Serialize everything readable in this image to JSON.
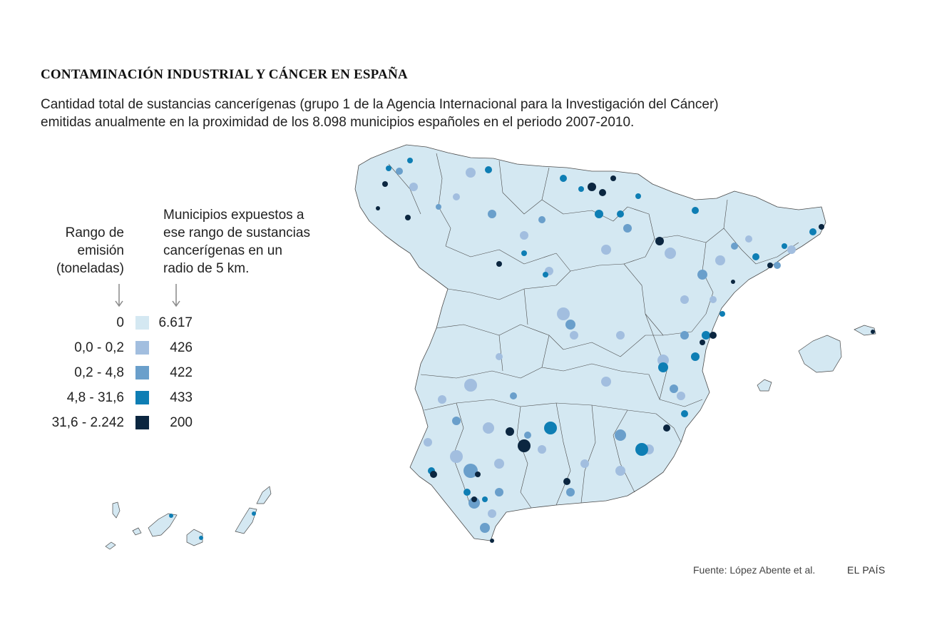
{
  "title": "CONTAMINACIÓN INDUSTRIAL Y CÁNCER EN ESPAÑA",
  "subtitle_line1": "Cantidad total de sustancias cancerígenas (grupo 1 de la Agencia Internacional para la Investigación del Cáncer)",
  "subtitle_line2": "emitidas anualmente en la proximidad de los 8.098 municipios españoles en el periodo 2007-2010.",
  "legend": {
    "range_header": [
      "Rango de",
      "emisión",
      "(toneladas)"
    ],
    "count_header": [
      "Municipios expuestos a",
      "ese rango de sustancias",
      "cancerígenas en un",
      "radio de 5 km."
    ],
    "rows": [
      {
        "range": "0",
        "count": "6.617",
        "color": "#d4e8f2"
      },
      {
        "range": "0,0 - 0,2",
        "count": "426",
        "color": "#a2bedf"
      },
      {
        "range": "0,2 - 4,8",
        "count": "422",
        "color": "#6a9fcb"
      },
      {
        "range": "4,8 - 31,6",
        "count": "433",
        "color": "#0e7eb4"
      },
      {
        "range": "31,6 - 2.242",
        "count": "200",
        "color": "#0b2640"
      }
    ]
  },
  "source": "Fuente: López Abente et al.",
  "brand": "EL PAÍS"
}
